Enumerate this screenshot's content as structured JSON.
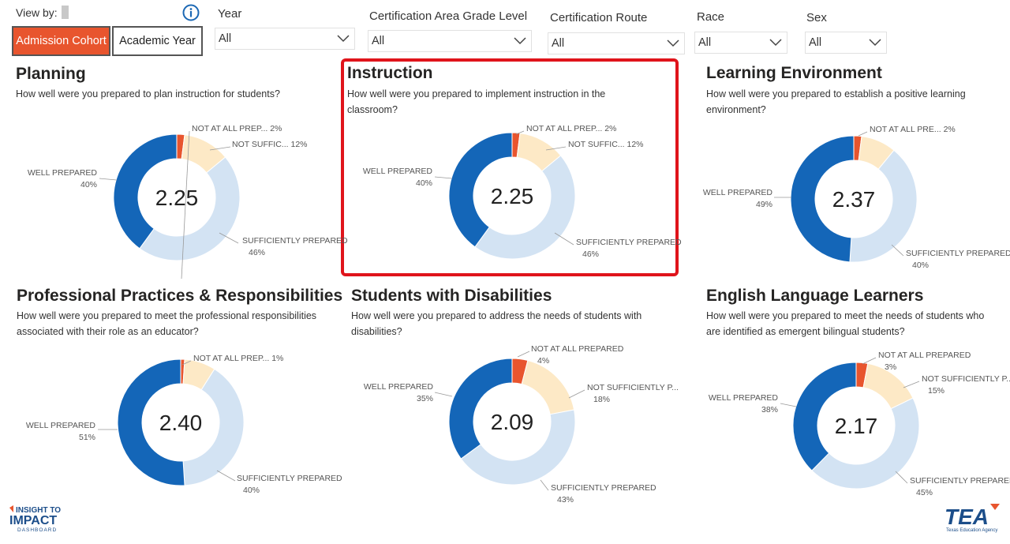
{
  "controls": {
    "view_by_label": "View by:",
    "buttons": [
      "Admission Cohort",
      "Academic Year"
    ],
    "active_button": "Admission Cohort",
    "filters": [
      {
        "label": "Year",
        "value": "All"
      },
      {
        "label": "Certification Area Grade Level",
        "value": "All"
      },
      {
        "label": "Certification Route",
        "value": "All"
      },
      {
        "label": "Race",
        "value": "All"
      },
      {
        "label": "Sex",
        "value": "All"
      }
    ]
  },
  "colors": {
    "well_prepared": "#1466b8",
    "sufficiently_prepared": "#d3e3f3",
    "not_sufficiently_prepared": "#fde9c6",
    "not_at_all_prepared": "#e8552e",
    "highlight_border": "#e0141b",
    "active_button": "#e8552e"
  },
  "icons": [
    "info-icon",
    "chevron-down-icon"
  ],
  "panels": [
    {
      "title": "Planning",
      "subtitle_lines": [
        "How well were you prepared to plan instruction for students?"
      ],
      "highlighted": false,
      "chart_data": {
        "type": "pie",
        "center_value": "2.25",
        "slices": [
          {
            "label": "NOT AT ALL PREP...",
            "value": 2,
            "display": "2%"
          },
          {
            "label": "NOT SUFFIC...",
            "value": 12,
            "display": "12%"
          },
          {
            "label": "SUFFICIENTLY PREPARED",
            "value": 46,
            "display": "46%"
          },
          {
            "label": "WELL PREPARED",
            "value": 40,
            "display": "40%"
          }
        ]
      }
    },
    {
      "title": "Instruction",
      "subtitle_lines": [
        "How well were you prepared to implement instruction in the",
        "classroom?"
      ],
      "highlighted": true,
      "chart_data": {
        "type": "pie",
        "center_value": "2.25",
        "slices": [
          {
            "label": "NOT AT ALL PREP...",
            "value": 2,
            "display": "2%"
          },
          {
            "label": "NOT SUFFIC...",
            "value": 12,
            "display": "12%"
          },
          {
            "label": "SUFFICIENTLY PREPARED",
            "value": 46,
            "display": "46%"
          },
          {
            "label": "WELL PREPARED",
            "value": 40,
            "display": "40%"
          }
        ]
      }
    },
    {
      "title": "Learning Environment",
      "subtitle_lines": [
        "How well were you prepared to establish a positive learning",
        "environment?"
      ],
      "highlighted": false,
      "chart_data": {
        "type": "pie",
        "center_value": "2.37",
        "slices": [
          {
            "label": "NOT AT ALL PRE...",
            "value": 2,
            "display": "2%"
          },
          {
            "label": "",
            "value": 9,
            "display": ""
          },
          {
            "label": "SUFFICIENTLY PREPARED",
            "value": 40,
            "display": "40%"
          },
          {
            "label": "WELL PREPARED",
            "value": 49,
            "display": "49%"
          }
        ]
      }
    },
    {
      "title": "Professional Practices & Responsibilities",
      "subtitle_lines": [
        "How well were you prepared to meet the professional responsibilities",
        "associated with their role as an educator?"
      ],
      "highlighted": false,
      "chart_data": {
        "type": "pie",
        "center_value": "2.40",
        "slices": [
          {
            "label": "NOT AT ALL PREP...",
            "value": 1,
            "display": "1%"
          },
          {
            "label": "",
            "value": 8,
            "display": ""
          },
          {
            "label": "SUFFICIENTLY PREPARED",
            "value": 40,
            "display": "40%"
          },
          {
            "label": "WELL PREPARED",
            "value": 51,
            "display": "51%"
          }
        ]
      }
    },
    {
      "title": "Students with Disabilities",
      "subtitle_lines": [
        "How well were you prepared to address the needs of students with",
        "disabilities?"
      ],
      "highlighted": false,
      "chart_data": {
        "type": "pie",
        "center_value": "2.09",
        "slices": [
          {
            "label": "NOT AT ALL PREPARED",
            "value": 4,
            "display": "4%"
          },
          {
            "label": "NOT SUFFICIENTLY P...",
            "value": 18,
            "display": "18%"
          },
          {
            "label": "SUFFICIENTLY PREPARED",
            "value": 43,
            "display": "43%"
          },
          {
            "label": "WELL PREPARED",
            "value": 35,
            "display": "35%"
          }
        ]
      }
    },
    {
      "title": "English Language Learners",
      "subtitle_lines": [
        "How well were you prepared to meet the needs of students who",
        "are identified as emergent bilingual students?"
      ],
      "highlighted": false,
      "chart_data": {
        "type": "pie",
        "center_value": "2.17",
        "slices": [
          {
            "label": "NOT AT ALL PREPARED",
            "value": 3,
            "display": "3%"
          },
          {
            "label": "NOT SUFFICIENTLY P...",
            "value": 15,
            "display": "15%"
          },
          {
            "label": "SUFFICIENTLY PREPARED",
            "value": 45,
            "display": "45%"
          },
          {
            "label": "WELL PREPARED",
            "value": 38,
            "display": "38%"
          }
        ]
      }
    }
  ],
  "logos": {
    "left": [
      "INSIGHT TO",
      "IMPACT",
      "DASHBOARD"
    ],
    "right": [
      "TEA",
      "Texas Education Agency"
    ]
  }
}
